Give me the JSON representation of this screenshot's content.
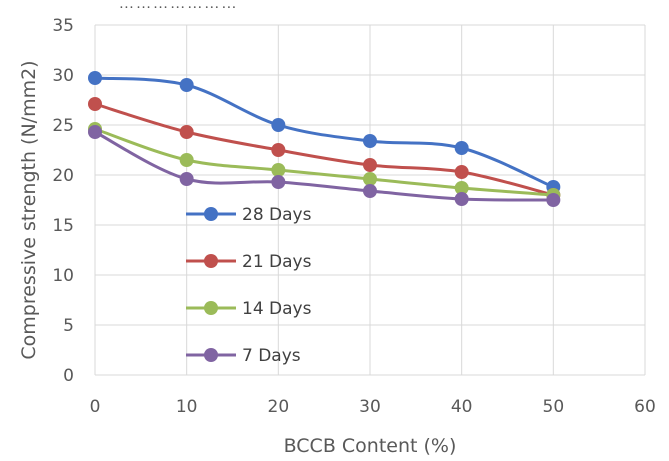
{
  "caption_fragment": "… … … … … … …",
  "chart_data": {
    "type": "line",
    "title": "",
    "xlabel": "BCCB Content (%)",
    "ylabel": "Compressive strength (N/mm2)",
    "xlim": [
      0,
      60
    ],
    "ylim": [
      0,
      35
    ],
    "x_ticks": [
      "0",
      "10",
      "20",
      "30",
      "40",
      "50",
      "60"
    ],
    "y_ticks": [
      "0",
      "5",
      "10",
      "15",
      "20",
      "25",
      "30",
      "35"
    ],
    "grid": true,
    "legend_position": "inside-left",
    "x": [
      0,
      10,
      20,
      30,
      40,
      50
    ],
    "series": [
      {
        "name": "28 Days",
        "color": "#4472C4",
        "values": [
          29.7,
          29.0,
          25.0,
          23.4,
          22.7,
          18.8
        ]
      },
      {
        "name": "21 Days",
        "color": "#C0504D",
        "values": [
          27.1,
          24.3,
          22.5,
          21.0,
          20.3,
          18.0
        ]
      },
      {
        "name": "14 Days",
        "color": "#9BBB59",
        "values": [
          24.6,
          21.5,
          20.5,
          19.6,
          18.7,
          18.0
        ]
      },
      {
        "name": "7 Days",
        "color": "#8064A2",
        "values": [
          24.3,
          19.6,
          19.3,
          18.4,
          17.6,
          17.5
        ]
      }
    ]
  }
}
